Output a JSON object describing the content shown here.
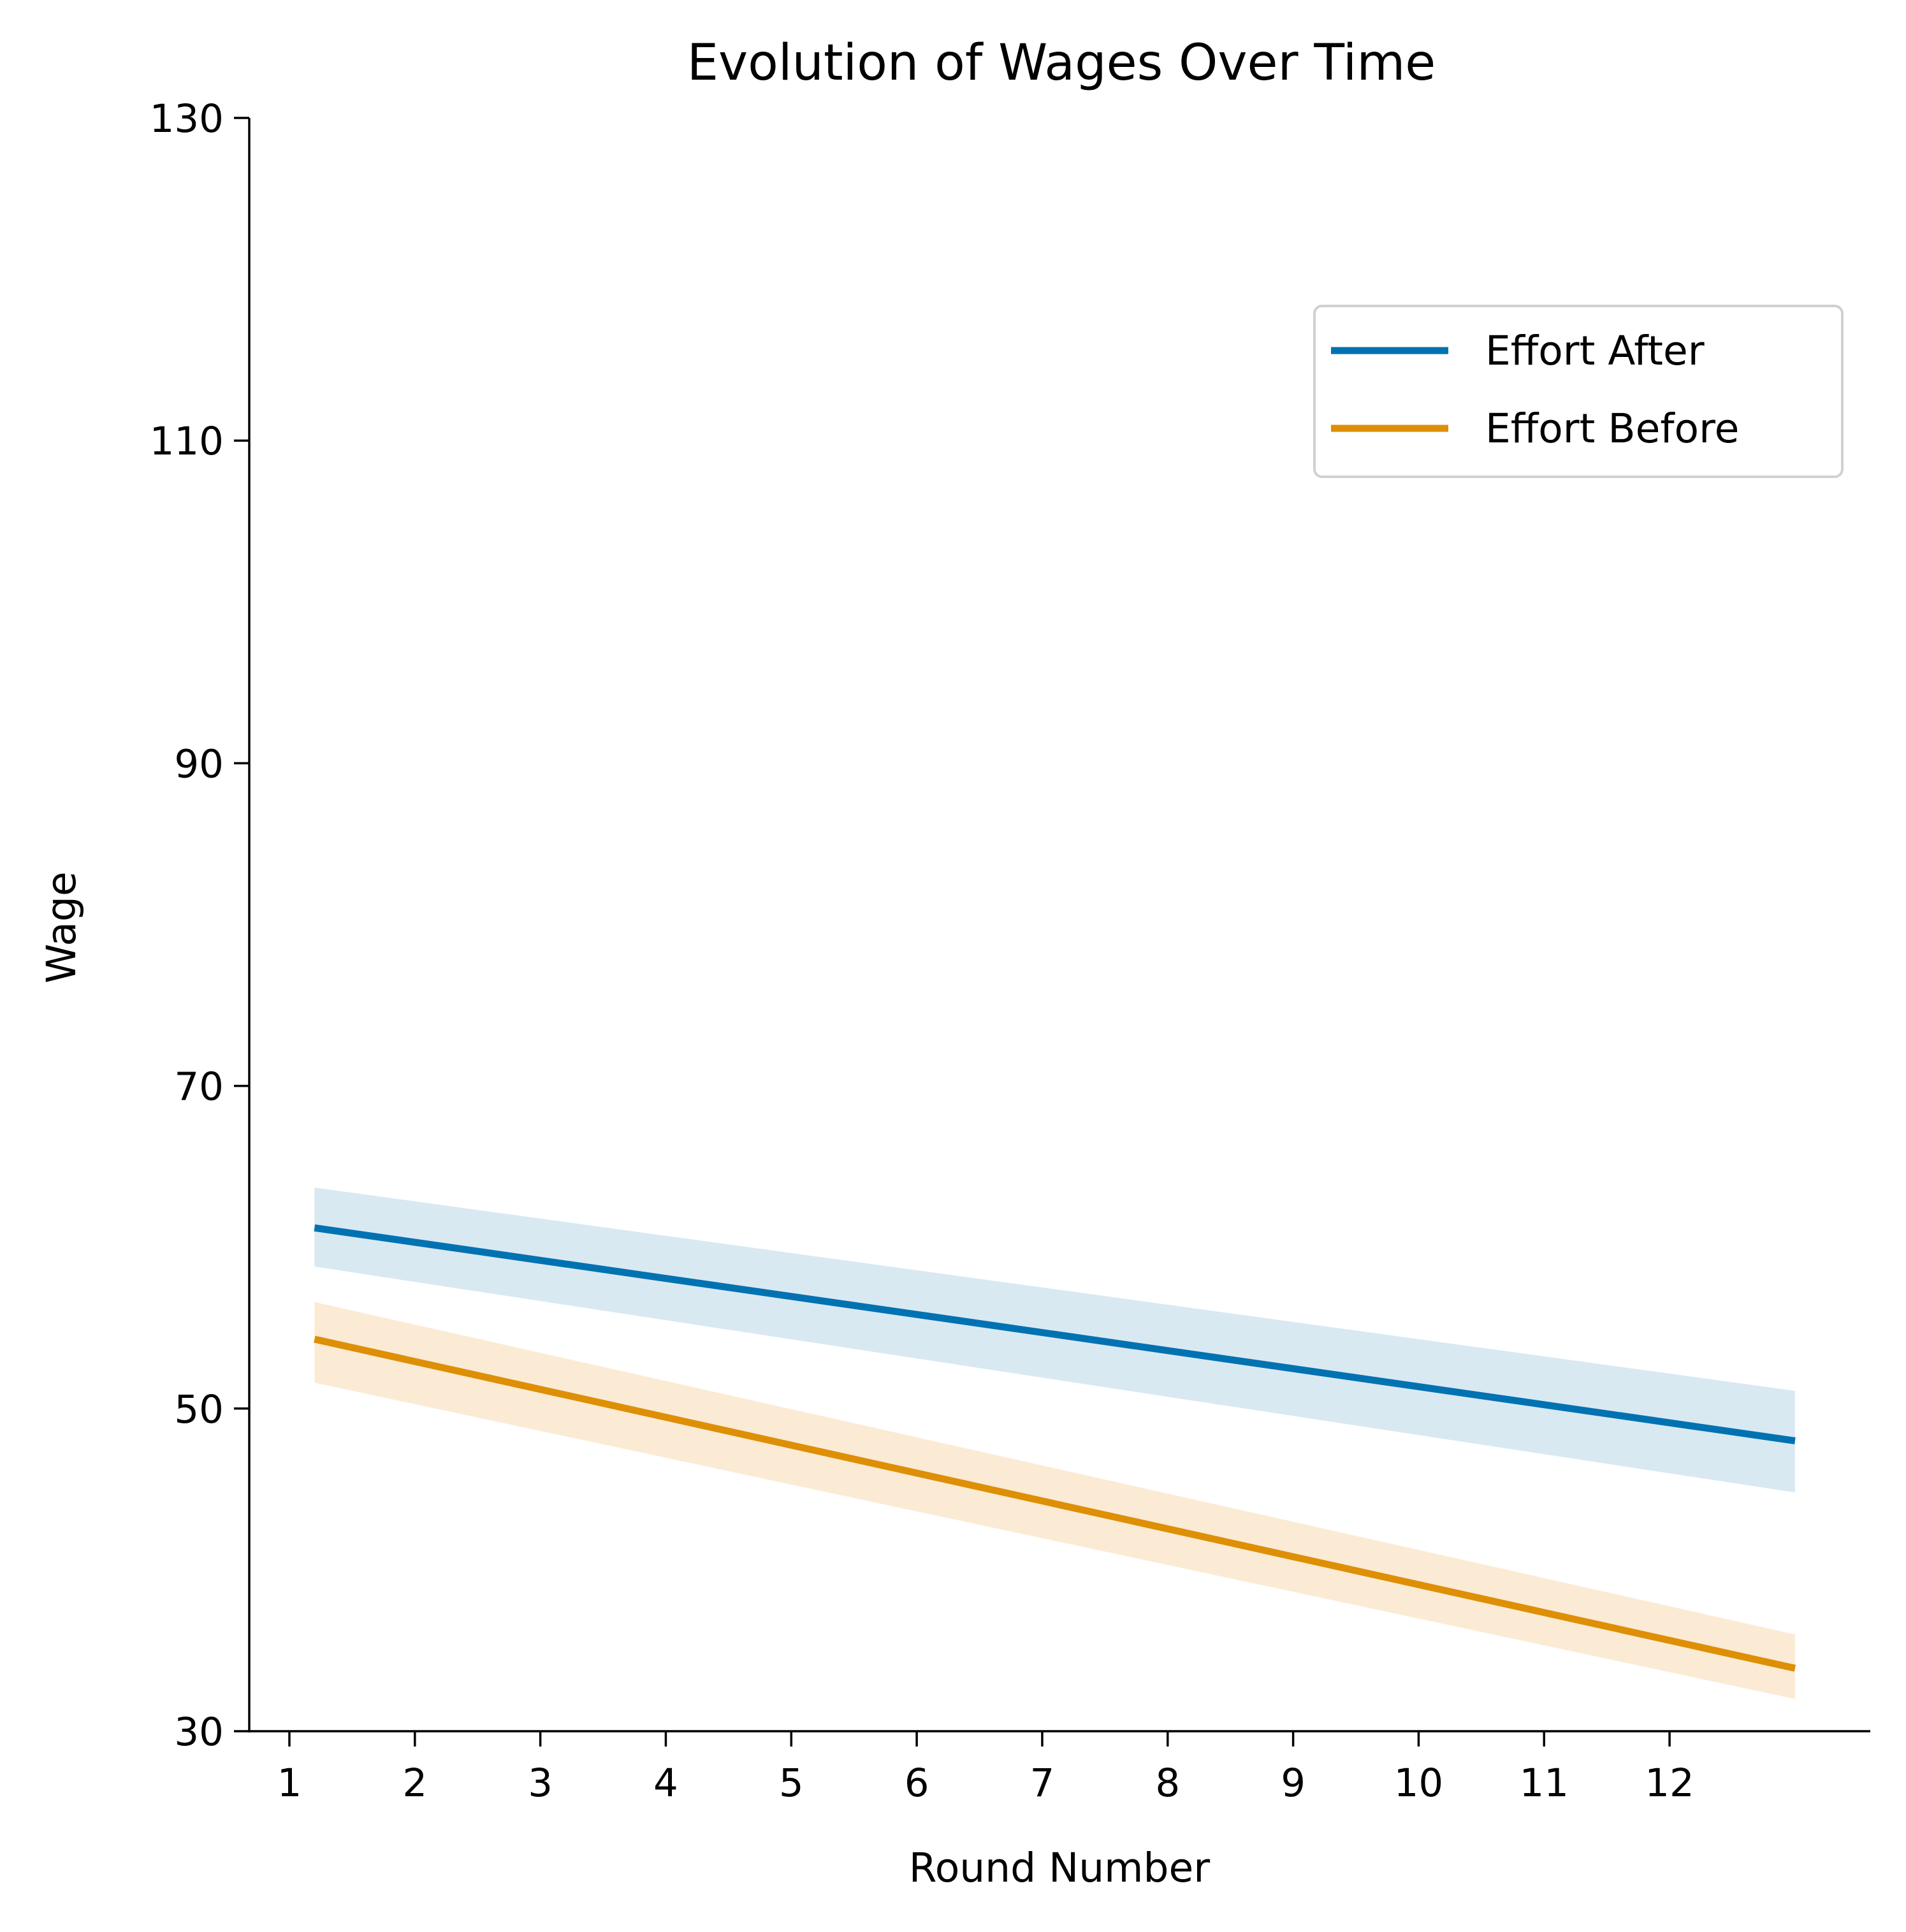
{
  "chart_data": {
    "type": "line",
    "title": "Evolution of Wages Over Time",
    "xlabel": "Round Number",
    "ylabel": "Wage",
    "xlim": [
      0.68,
      13.6
    ],
    "ylim": [
      30,
      130
    ],
    "xticks": [
      1,
      2,
      3,
      4,
      5,
      6,
      7,
      8,
      9,
      10,
      11,
      12
    ],
    "yticks": [
      30,
      50,
      70,
      90,
      110,
      130
    ],
    "grid": false,
    "legend_position": "upper right",
    "series": [
      {
        "name": "Effort After",
        "color": "#0072b2",
        "band_color": "#d9e9f2",
        "x": [
          1.2,
          13.0
        ],
        "y": [
          61.2,
          48.0
        ],
        "ci_lower": [
          58.8,
          44.8
        ],
        "ci_upper": [
          63.7,
          51.1
        ]
      },
      {
        "name": "Effort Before",
        "color": "#de8f05",
        "band_color": "#fbebd5",
        "x": [
          1.2,
          13.0
        ],
        "y": [
          54.3,
          33.9
        ],
        "ci_lower": [
          51.6,
          32.0
        ],
        "ci_upper": [
          56.6,
          36.0
        ]
      }
    ]
  }
}
